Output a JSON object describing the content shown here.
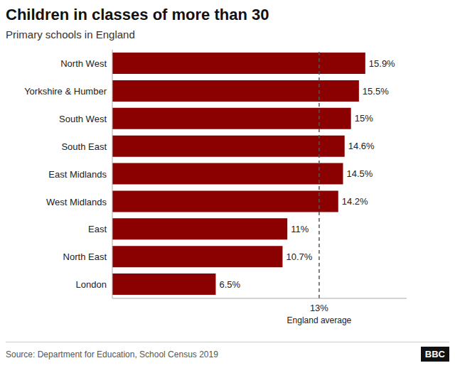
{
  "chart_data": {
    "type": "bar",
    "orientation": "horizontal",
    "title": "Children in classes of more than 30",
    "subtitle": "Primary schools in England",
    "source": "Source: Department for Education, School Census 2019",
    "logo": "BBC",
    "categories": [
      "North West",
      "Yorkshire & Humber",
      "South West",
      "South East",
      "East Midlands",
      "West Midlands",
      "East",
      "North East",
      "London"
    ],
    "values": [
      15.9,
      15.5,
      15.0,
      14.6,
      14.5,
      14.2,
      11.0,
      10.7,
      6.5
    ],
    "value_labels": [
      "15.9%",
      "15.5%",
      "15%",
      "14.6%",
      "14.5%",
      "14.2%",
      "11%",
      "10.7%",
      "6.5%"
    ],
    "data_labels": true,
    "color": "#8B0000",
    "average": {
      "value": 13.0,
      "label": "13%",
      "note": "England average"
    },
    "xlim": [
      0,
      18.5
    ],
    "xticks": [],
    "tick_labels": "y",
    "grid": false
  }
}
